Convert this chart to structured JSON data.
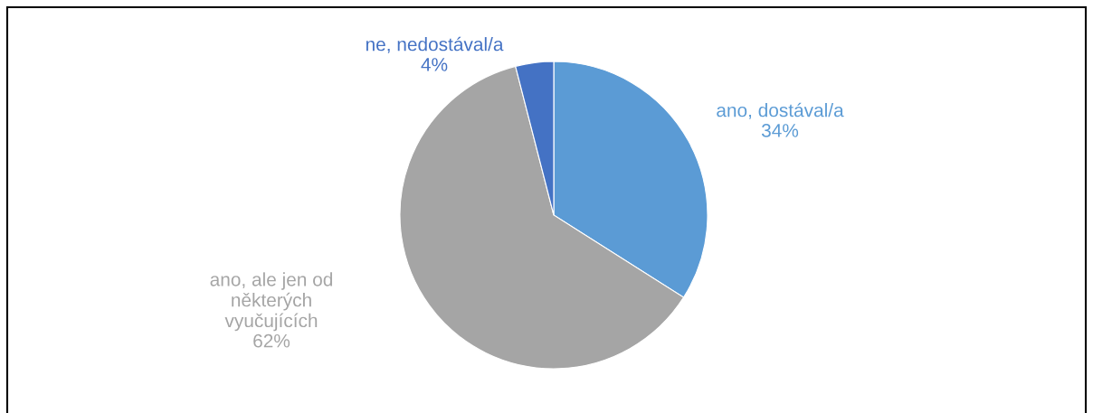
{
  "chart_data": {
    "type": "pie",
    "categories": [
      "ano, dostával/a",
      "ano, ale jen od\nněkterých\nvyučujících",
      "ne, nedostával/a"
    ],
    "values": [
      34,
      62,
      4
    ],
    "colors": [
      "#5b9bd5",
      "#a5a5a5",
      "#4472c4"
    ],
    "value_labels": [
      "34%",
      "62%",
      "4%"
    ],
    "legend": false
  }
}
